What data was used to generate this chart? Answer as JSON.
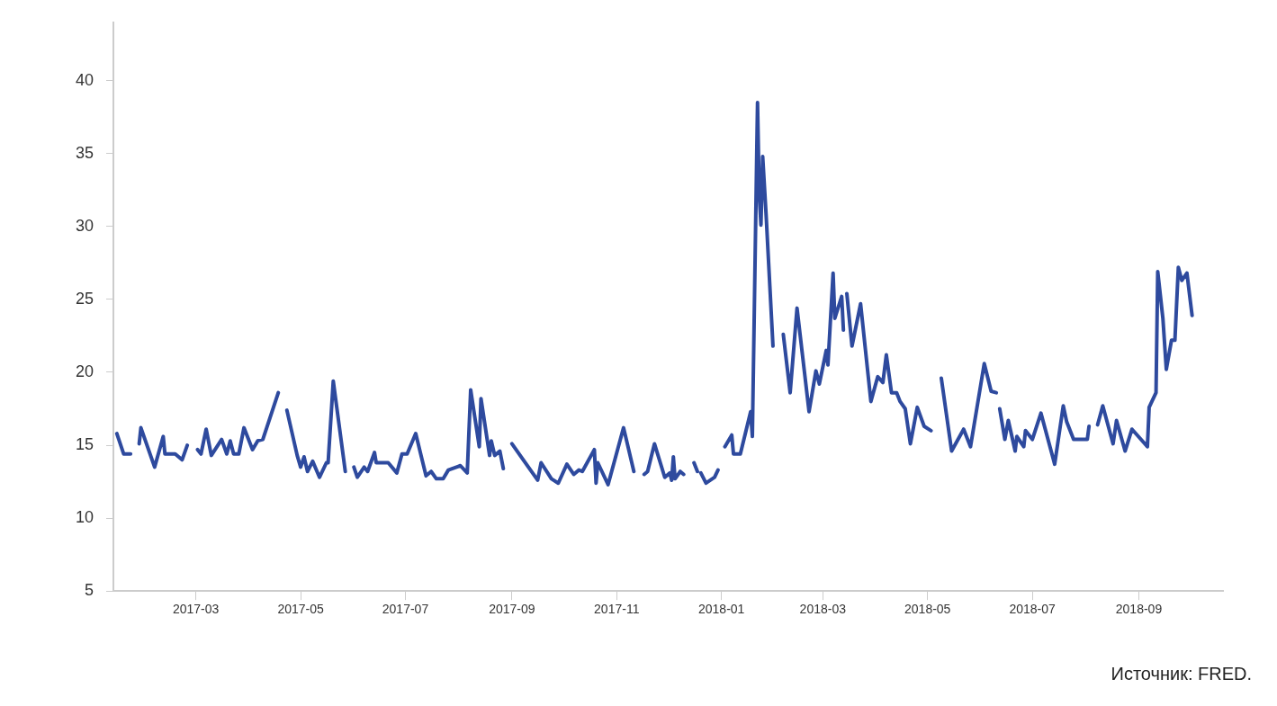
{
  "chart_data": {
    "type": "line",
    "annotations": [
      "Источник: FRED."
    ],
    "x": [
      "2017-01-14",
      "2017-01-18",
      "2017-01-22",
      "2017-01-25",
      "2017-01-27",
      "2017-01-28",
      "2017-02-05",
      "2017-02-10",
      "2017-02-11",
      "2017-02-17",
      "2017-02-21",
      "2017-02-24",
      "2017-02-27",
      "2017-03-02",
      "2017-03-04",
      "2017-03-07",
      "2017-03-10",
      "2017-03-16",
      "2017-03-19",
      "2017-03-21",
      "2017-03-23",
      "2017-03-26",
      "2017-03-29",
      "2017-04-03",
      "2017-04-06",
      "2017-04-09",
      "2017-04-18",
      "2017-04-20",
      "2017-04-23",
      "2017-04-29",
      "2017-05-01",
      "2017-05-03",
      "2017-05-05",
      "2017-05-08",
      "2017-05-12",
      "2017-05-16",
      "2017-05-17",
      "2017-05-20",
      "2017-05-27",
      "2017-05-29",
      "2017-06-01",
      "2017-06-03",
      "2017-06-07",
      "2017-06-09",
      "2017-06-13",
      "2017-06-14",
      "2017-06-21",
      "2017-06-26",
      "2017-06-29",
      "2017-07-02",
      "2017-07-07",
      "2017-07-13",
      "2017-07-16",
      "2017-07-19",
      "2017-07-23",
      "2017-07-26",
      "2017-08-02",
      "2017-08-06",
      "2017-08-08",
      "2017-08-13",
      "2017-08-14",
      "2017-08-19",
      "2017-08-20",
      "2017-08-22",
      "2017-08-25",
      "2017-08-27",
      "2017-08-30",
      "2017-09-01",
      "2017-09-16",
      "2017-09-18",
      "2017-09-24",
      "2017-09-28",
      "2017-10-03",
      "2017-10-07",
      "2017-10-10",
      "2017-10-12",
      "2017-10-19",
      "2017-10-20",
      "2017-10-21",
      "2017-10-27",
      "2017-11-05",
      "2017-11-11",
      "2017-11-14",
      "2017-11-17",
      "2017-11-19",
      "2017-11-23",
      "2017-11-29",
      "2017-12-02",
      "2017-12-03",
      "2017-12-04",
      "2017-12-05",
      "2017-12-08",
      "2017-12-10",
      "2017-12-13",
      "2017-12-16",
      "2017-12-18",
      "2017-12-19",
      "2017-12-20",
      "2017-12-23",
      "2017-12-28",
      "2017-12-30",
      "2018-01-01",
      "2018-01-03",
      "2018-01-07",
      "2018-01-08",
      "2018-01-12",
      "2018-01-18",
      "2018-01-19",
      "2018-01-22",
      "2018-01-23",
      "2018-01-24",
      "2018-01-25",
      "2018-01-27",
      "2018-01-31",
      "2018-02-03",
      "2018-02-06",
      "2018-02-10",
      "2018-02-14",
      "2018-02-21",
      "2018-02-25",
      "2018-02-27",
      "2018-03-03",
      "2018-03-04",
      "2018-03-07",
      "2018-03-08",
      "2018-03-12",
      "2018-03-13",
      "2018-03-14",
      "2018-03-15",
      "2018-03-18",
      "2018-03-23",
      "2018-03-29",
      "2018-04-02",
      "2018-04-05",
      "2018-04-07",
      "2018-04-10",
      "2018-04-13",
      "2018-04-15",
      "2018-04-18",
      "2018-04-21",
      "2018-04-25",
      "2018-04-29",
      "2018-05-03",
      "2018-05-06",
      "2018-05-09",
      "2018-05-15",
      "2018-05-22",
      "2018-05-26",
      "2018-06-03",
      "2018-06-07",
      "2018-06-10",
      "2018-06-11",
      "2018-06-12",
      "2018-06-15",
      "2018-06-17",
      "2018-06-21",
      "2018-06-22",
      "2018-06-26",
      "2018-06-27",
      "2018-07-01",
      "2018-07-06",
      "2018-07-14",
      "2018-07-19",
      "2018-07-21",
      "2018-07-25",
      "2018-08-02",
      "2018-08-03",
      "2018-08-05",
      "2018-08-08",
      "2018-08-11",
      "2018-08-17",
      "2018-08-19",
      "2018-08-24",
      "2018-08-28",
      "2018-09-06",
      "2018-09-07",
      "2018-09-11",
      "2018-09-12",
      "2018-09-15",
      "2018-09-17",
      "2018-09-20",
      "2018-09-22",
      "2018-09-24",
      "2018-09-26",
      "2018-09-29",
      "2018-10-02"
    ],
    "series": [
      {
        "color": "#2e4a9e",
        "values": [
          15.8,
          14.4,
          14.4,
          null,
          15.1,
          16.2,
          13.5,
          15.6,
          14.4,
          14.4,
          14.0,
          15.0,
          null,
          14.7,
          14.4,
          16.1,
          14.3,
          15.4,
          14.4,
          15.3,
          14.4,
          14.4,
          16.2,
          14.7,
          15.3,
          15.4,
          18.6,
          null,
          17.4,
          14.3,
          13.5,
          14.2,
          13.2,
          13.9,
          12.8,
          13.8,
          13.8,
          19.4,
          13.2,
          null,
          13.5,
          12.8,
          13.5,
          13.2,
          14.5,
          13.8,
          13.8,
          13.1,
          14.4,
          14.4,
          15.8,
          12.9,
          13.2,
          12.7,
          12.7,
          13.3,
          13.6,
          13.1,
          18.8,
          14.9,
          18.2,
          14.3,
          15.3,
          14.3,
          14.6,
          13.4,
          null,
          15.1,
          12.6,
          13.8,
          12.7,
          12.4,
          13.7,
          13.0,
          13.3,
          13.2,
          14.7,
          12.4,
          13.8,
          12.3,
          16.2,
          13.2,
          null,
          13.0,
          13.2,
          15.1,
          12.8,
          13.1,
          12.6,
          14.2,
          12.7,
          13.2,
          13.0,
          null,
          13.8,
          13.2,
          null,
          13.1,
          12.4,
          12.8,
          13.3,
          null,
          14.9,
          15.7,
          14.4,
          14.4,
          17.3,
          15.6,
          38.5,
          32.2,
          30.1,
          34.8,
          30.8,
          21.8,
          null,
          22.6,
          18.6,
          24.4,
          17.3,
          20.1,
          19.2,
          21.5,
          20.5,
          26.8,
          23.7,
          25.2,
          22.9,
          null,
          25.4,
          21.8,
          24.7,
          18.0,
          19.7,
          19.3,
          21.2,
          18.6,
          18.6,
          18.0,
          17.5,
          15.1,
          17.6,
          16.3,
          16.0,
          null,
          19.6,
          14.6,
          16.1,
          14.9,
          20.6,
          18.7,
          18.6,
          null,
          17.5,
          15.4,
          16.7,
          14.6,
          15.6,
          14.9,
          16.0,
          15.4,
          17.2,
          13.7,
          17.7,
          16.6,
          15.4,
          15.4,
          16.3,
          null,
          16.4,
          17.7,
          15.1,
          16.7,
          14.6,
          16.1,
          14.9,
          17.6,
          18.6,
          26.9,
          23.7,
          20.2,
          22.2,
          22.2,
          27.2,
          26.3,
          26.8,
          23.9
        ]
      }
    ],
    "xlim": [
      "2017-01-12",
      "2018-10-20"
    ],
    "xticks": [
      "2017-03",
      "2017-05",
      "2017-07",
      "2017-09",
      "2017-11",
      "2018-01",
      "2018-03",
      "2018-05",
      "2018-07",
      "2018-09"
    ],
    "ylim": [
      5,
      44
    ],
    "yticks": [
      5,
      10,
      15,
      20,
      25,
      30,
      35,
      40
    ],
    "grid": false,
    "legend": false,
    "marker": "none",
    "line_style": "solid"
  }
}
